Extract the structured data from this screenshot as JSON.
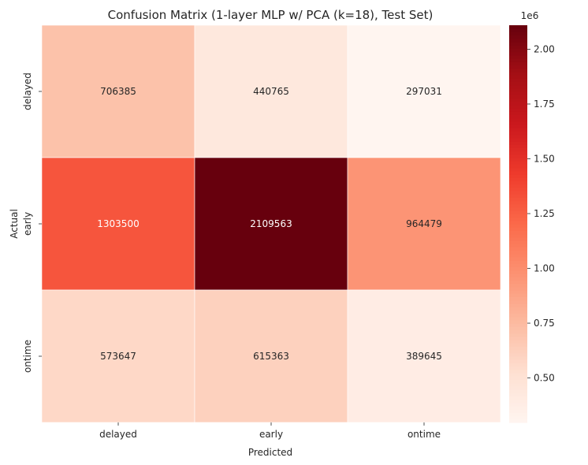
{
  "chart_data": {
    "type": "heatmap",
    "title": "Confusion Matrix (1-layer MLP w/ PCA (k=18), Test Set)",
    "xlabel": "Predicted",
    "ylabel": "Actual",
    "x_categories": [
      "delayed",
      "early",
      "ontime"
    ],
    "y_categories": [
      "delayed",
      "early",
      "ontime"
    ],
    "values": [
      [
        706385,
        440765,
        297031
      ],
      [
        1303500,
        2109563,
        964479
      ],
      [
        573647,
        615363,
        389645
      ]
    ],
    "colormap": "Reds",
    "colorbar": {
      "min": 297031,
      "max": 2109563,
      "ticks": [
        0.5,
        0.75,
        1.0,
        1.25,
        1.5,
        1.75,
        2.0
      ],
      "tick_labels": [
        "0.50",
        "0.75",
        "1.00",
        "1.25",
        "1.50",
        "1.75",
        "2.00"
      ],
      "scale_label": "1e6",
      "cbar_min_display": 0.297031,
      "cbar_max_display": 2.109563
    },
    "grid_lines": true
  }
}
